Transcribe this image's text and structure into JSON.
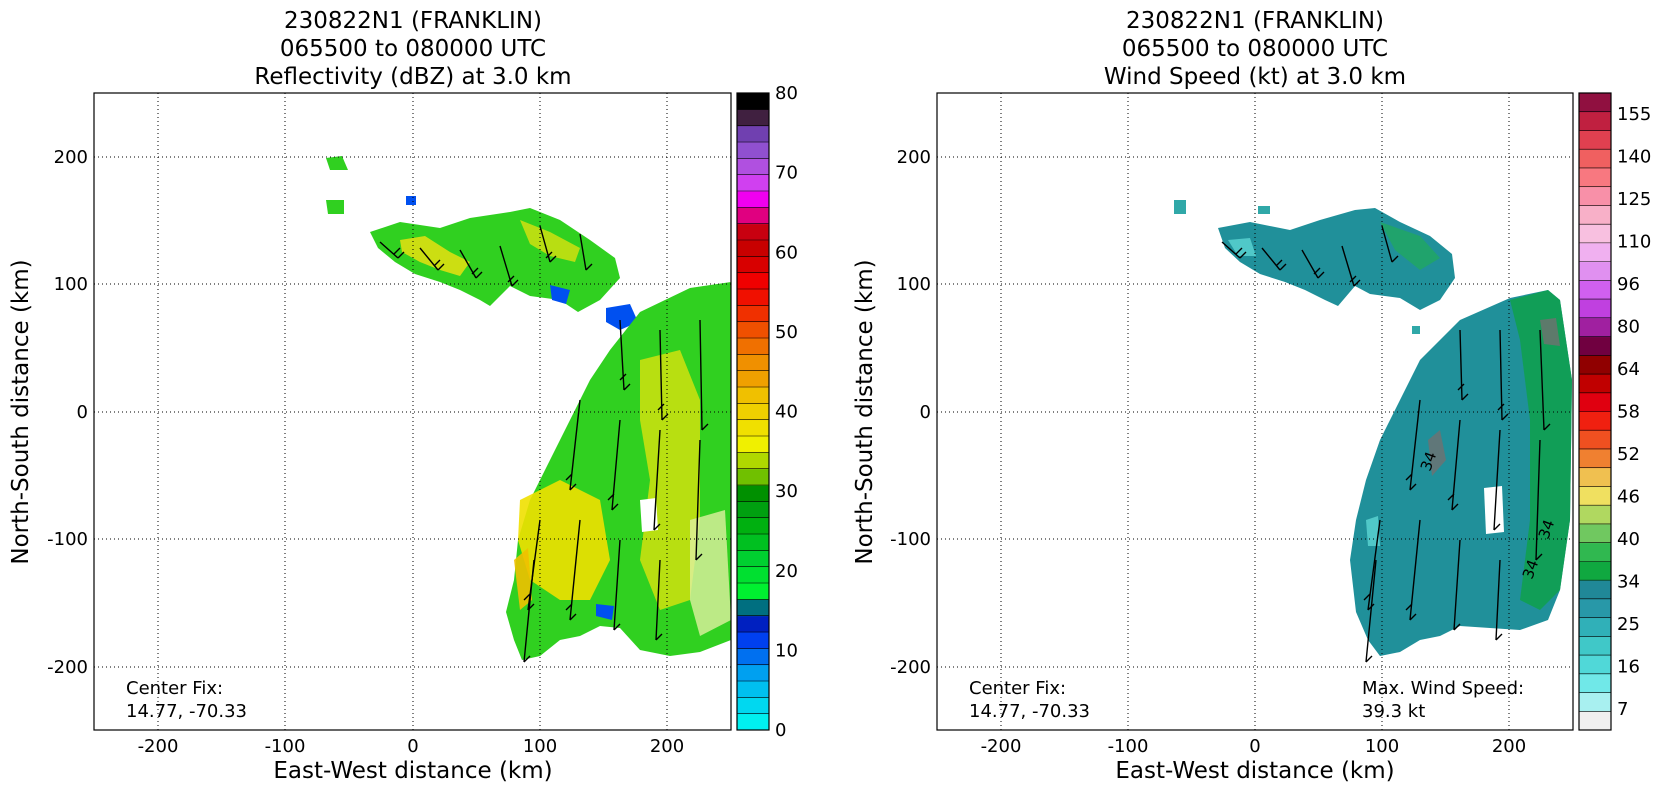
{
  "chart_data": [
    {
      "type": "heatmap",
      "title_lines": [
        "230822N1 (FRANKLIN)",
        "065500 to 080000 UTC",
        "Reflectivity (dBZ) at 3.0 km"
      ],
      "xlabel": "East-West distance (km)",
      "ylabel": "North-South distance (km)",
      "xlim": [
        -250,
        250
      ],
      "ylim": [
        -250,
        250
      ],
      "xticks": [
        -200,
        -100,
        0,
        100,
        200
      ],
      "yticks": [
        -200,
        -100,
        0,
        100,
        200
      ],
      "grid": true,
      "annotations": [
        "Center Fix:",
        "14.77, -70.33"
      ],
      "colorbar": {
        "ticks": [
          "0",
          "10",
          "20",
          "30",
          "40",
          "50",
          "60",
          "70",
          "80"
        ],
        "colors": [
          "#00f0f0",
          "#00d8f0",
          "#00c0f0",
          "#00a0f0",
          "#0070f0",
          "#0040f0",
          "#0020c0",
          "#006f80",
          "#00f030",
          "#00e030",
          "#00d030",
          "#00c020",
          "#00b010",
          "#00a010",
          "#009000",
          "#70c000",
          "#b0d800",
          "#f0f000",
          "#f0e000",
          "#f0d000",
          "#f0c000",
          "#f0a000",
          "#f09000",
          "#f07000",
          "#f05000",
          "#f03000",
          "#f01000",
          "#f00000",
          "#d80000",
          "#c80000",
          "#c80010",
          "#e00080",
          "#f000f0",
          "#d040f0",
          "#b050e0",
          "#9050d0",
          "#7040b0",
          "#402040",
          "#000000"
        ]
      },
      "value_label": null
    },
    {
      "type": "heatmap",
      "title_lines": [
        "230822N1 (FRANKLIN)",
        "065500 to 080000 UTC",
        "Wind Speed (kt) at 3.0 km"
      ],
      "xlabel": "East-West distance (km)",
      "ylabel": "North-South distance (km)",
      "xlim": [
        -250,
        250
      ],
      "ylim": [
        -250,
        250
      ],
      "xticks": [
        -200,
        -100,
        0,
        100,
        200
      ],
      "yticks": [
        -200,
        -100,
        0,
        100,
        200
      ],
      "grid": true,
      "annotations": [
        "Center Fix:",
        "14.77, -70.33"
      ],
      "max_wind_label": [
        "Max. Wind Speed:",
        "39.3 kt"
      ],
      "colorbar": {
        "ticks": [
          "7",
          "16",
          "25",
          "34",
          "40",
          "46",
          "52",
          "58",
          "64",
          "80",
          "96",
          "110",
          "125",
          "140",
          "155"
        ],
        "colors": [
          "#f0f0f0",
          "#a8f0f0",
          "#70e8e8",
          "#50d8d8",
          "#40c8c8",
          "#30b0b8",
          "#2898a8",
          "#208898",
          "#10a840",
          "#30b850",
          "#70c860",
          "#b0d860",
          "#f0e060",
          "#f0c050",
          "#f08030",
          "#f05020",
          "#f02010",
          "#e00010",
          "#c00000",
          "#900000",
          "#700040",
          "#a020a0",
          "#c040e0",
          "#d060f0",
          "#e090f0",
          "#f0b0f0",
          "#f8c0e0",
          "#f8b0c8",
          "#f890a8",
          "#f87880",
          "#f06060",
          "#e04050",
          "#c02040",
          "#901040"
        ]
      },
      "contour_labels": [
        "34",
        "34",
        "34"
      ]
    }
  ]
}
